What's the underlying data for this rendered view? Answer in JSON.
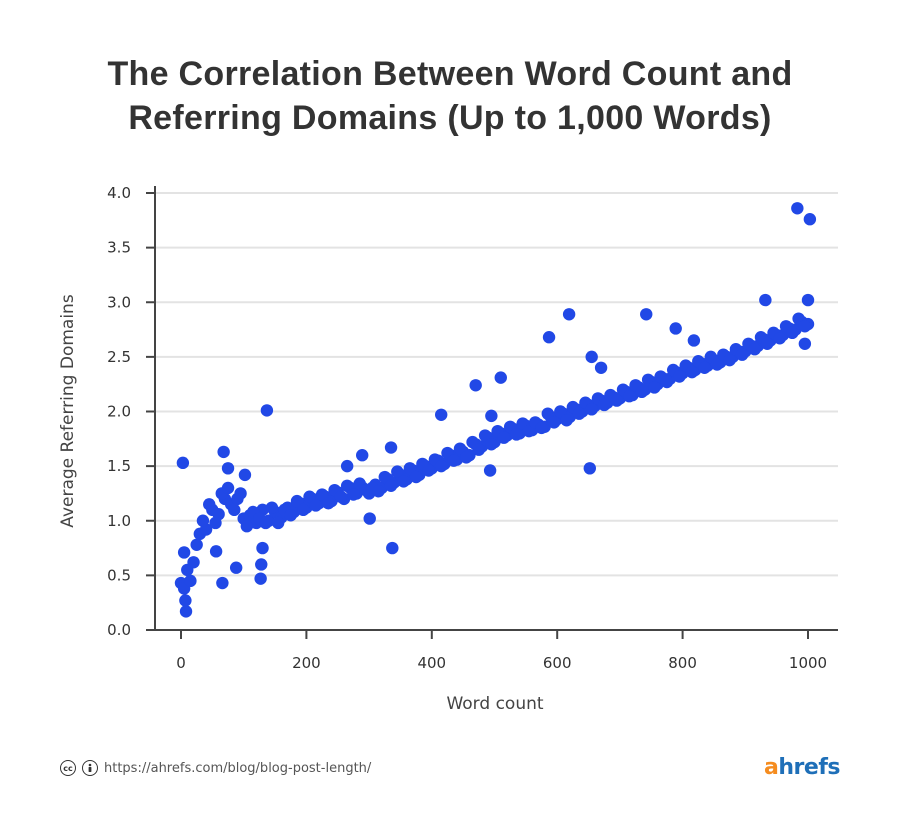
{
  "chart_data": {
    "type": "scatter",
    "title": "The Correlation Between Word Count and Referring Domains (Up to 1,000 Words)",
    "title_lines": [
      "The Correlation Between Word Count and",
      "Referring Domains (Up to 1,000 Words)"
    ],
    "xlabel": "Word count",
    "ylabel": "Average Referring Domains",
    "xlim": [
      0,
      1000
    ],
    "ylim": [
      0,
      4.0
    ],
    "xticks": [
      "0",
      "200",
      "400",
      "600",
      "800",
      "1000"
    ],
    "xtick_values": [
      0,
      200,
      400,
      600,
      800,
      1000
    ],
    "yticks": [
      "0.0",
      "0.5",
      "1.0",
      "1.5",
      "2.0",
      "2.5",
      "3.0",
      "3.5",
      "4.0"
    ],
    "ytick_values": [
      0,
      0.5,
      1,
      1.5,
      2,
      2.5,
      3,
      3.5,
      4
    ],
    "grid": "horizontal",
    "point_color": "#2148e6",
    "points": [
      [
        0,
        0.43
      ],
      [
        10,
        0.55
      ],
      [
        20,
        0.62
      ],
      [
        30,
        0.88
      ],
      [
        40,
        0.92
      ],
      [
        50,
        1.1
      ],
      [
        60,
        1.06
      ],
      [
        70,
        1.2
      ],
      [
        80,
        1.15
      ],
      [
        90,
        1.2
      ],
      [
        100,
        1.02
      ],
      [
        110,
        1.05
      ],
      [
        120,
        0.98
      ],
      [
        130,
        1.1
      ],
      [
        140,
        1.0
      ],
      [
        150,
        1.08
      ],
      [
        160,
        1.03
      ],
      [
        170,
        1.12
      ],
      [
        180,
        1.08
      ],
      [
        190,
        1.16
      ],
      [
        200,
        1.12
      ],
      [
        210,
        1.2
      ],
      [
        220,
        1.16
      ],
      [
        230,
        1.22
      ],
      [
        240,
        1.18
      ],
      [
        250,
        1.26
      ],
      [
        260,
        1.2
      ],
      [
        270,
        1.3
      ],
      [
        280,
        1.25
      ],
      [
        290,
        1.3
      ],
      [
        300,
        1.25
      ],
      [
        310,
        1.33
      ],
      [
        320,
        1.3
      ],
      [
        330,
        1.38
      ],
      [
        340,
        1.35
      ],
      [
        350,
        1.42
      ],
      [
        360,
        1.38
      ],
      [
        370,
        1.46
      ],
      [
        380,
        1.42
      ],
      [
        390,
        1.5
      ],
      [
        400,
        1.48
      ],
      [
        410,
        1.55
      ],
      [
        420,
        1.52
      ],
      [
        430,
        1.6
      ],
      [
        440,
        1.56
      ],
      [
        450,
        1.63
      ],
      [
        460,
        1.6
      ],
      [
        470,
        1.7
      ],
      [
        480,
        1.68
      ],
      [
        490,
        1.76
      ],
      [
        500,
        1.72
      ],
      [
        510,
        1.8
      ],
      [
        520,
        1.78
      ],
      [
        530,
        1.84
      ],
      [
        540,
        1.8
      ],
      [
        550,
        1.87
      ],
      [
        560,
        1.83
      ],
      [
        570,
        1.88
      ],
      [
        580,
        1.86
      ],
      [
        590,
        1.95
      ],
      [
        600,
        1.93
      ],
      [
        610,
        1.98
      ],
      [
        620,
        1.95
      ],
      [
        630,
        2.02
      ],
      [
        640,
        2.0
      ],
      [
        650,
        2.06
      ],
      [
        660,
        2.05
      ],
      [
        670,
        2.1
      ],
      [
        680,
        2.08
      ],
      [
        690,
        2.13
      ],
      [
        700,
        2.12
      ],
      [
        710,
        2.18
      ],
      [
        720,
        2.15
      ],
      [
        730,
        2.22
      ],
      [
        740,
        2.2
      ],
      [
        750,
        2.27
      ],
      [
        760,
        2.25
      ],
      [
        770,
        2.3
      ],
      [
        780,
        2.3
      ],
      [
        790,
        2.36
      ],
      [
        800,
        2.35
      ],
      [
        810,
        2.4
      ],
      [
        820,
        2.38
      ],
      [
        830,
        2.44
      ],
      [
        840,
        2.42
      ],
      [
        850,
        2.47
      ],
      [
        860,
        2.45
      ],
      [
        870,
        2.5
      ],
      [
        880,
        2.5
      ],
      [
        890,
        2.55
      ],
      [
        900,
        2.55
      ],
      [
        910,
        2.6
      ],
      [
        920,
        2.6
      ],
      [
        930,
        2.66
      ],
      [
        940,
        2.65
      ],
      [
        950,
        2.7
      ],
      [
        960,
        2.7
      ],
      [
        970,
        2.76
      ],
      [
        980,
        2.75
      ],
      [
        990,
        2.82
      ],
      [
        1000,
        2.8
      ],
      [
        5,
        0.38
      ],
      [
        15,
        0.45
      ],
      [
        25,
        0.78
      ],
      [
        35,
        1.0
      ],
      [
        45,
        1.15
      ],
      [
        55,
        0.98
      ],
      [
        65,
        1.25
      ],
      [
        75,
        1.3
      ],
      [
        85,
        1.1
      ],
      [
        95,
        1.25
      ],
      [
        105,
        0.95
      ],
      [
        115,
        1.08
      ],
      [
        125,
        1.02
      ],
      [
        135,
        0.98
      ],
      [
        145,
        1.12
      ],
      [
        155,
        0.98
      ],
      [
        165,
        1.1
      ],
      [
        175,
        1.05
      ],
      [
        185,
        1.18
      ],
      [
        195,
        1.1
      ],
      [
        205,
        1.22
      ],
      [
        215,
        1.14
      ],
      [
        225,
        1.24
      ],
      [
        235,
        1.16
      ],
      [
        245,
        1.28
      ],
      [
        255,
        1.22
      ],
      [
        265,
        1.32
      ],
      [
        275,
        1.24
      ],
      [
        285,
        1.34
      ],
      [
        295,
        1.28
      ],
      [
        305,
        1.3
      ],
      [
        315,
        1.27
      ],
      [
        325,
        1.4
      ],
      [
        335,
        1.32
      ],
      [
        345,
        1.45
      ],
      [
        355,
        1.36
      ],
      [
        365,
        1.48
      ],
      [
        375,
        1.4
      ],
      [
        385,
        1.52
      ],
      [
        395,
        1.46
      ],
      [
        405,
        1.56
      ],
      [
        415,
        1.5
      ],
      [
        425,
        1.62
      ],
      [
        435,
        1.55
      ],
      [
        445,
        1.66
      ],
      [
        455,
        1.58
      ],
      [
        465,
        1.72
      ],
      [
        475,
        1.65
      ],
      [
        485,
        1.78
      ],
      [
        495,
        1.7
      ],
      [
        505,
        1.82
      ],
      [
        515,
        1.76
      ],
      [
        525,
        1.86
      ],
      [
        535,
        1.79
      ],
      [
        545,
        1.89
      ],
      [
        555,
        1.82
      ],
      [
        565,
        1.9
      ],
      [
        575,
        1.85
      ],
      [
        585,
        1.98
      ],
      [
        595,
        1.9
      ],
      [
        605,
        2.0
      ],
      [
        615,
        1.92
      ],
      [
        625,
        2.04
      ],
      [
        635,
        1.98
      ],
      [
        645,
        2.08
      ],
      [
        655,
        2.02
      ],
      [
        665,
        2.12
      ],
      [
        675,
        2.06
      ],
      [
        685,
        2.15
      ],
      [
        695,
        2.1
      ],
      [
        705,
        2.2
      ],
      [
        715,
        2.14
      ],
      [
        725,
        2.24
      ],
      [
        735,
        2.18
      ],
      [
        745,
        2.29
      ],
      [
        755,
        2.22
      ],
      [
        765,
        2.32
      ],
      [
        775,
        2.27
      ],
      [
        785,
        2.38
      ],
      [
        795,
        2.32
      ],
      [
        805,
        2.42
      ],
      [
        815,
        2.36
      ],
      [
        825,
        2.46
      ],
      [
        835,
        2.4
      ],
      [
        845,
        2.5
      ],
      [
        855,
        2.43
      ],
      [
        865,
        2.52
      ],
      [
        875,
        2.47
      ],
      [
        885,
        2.57
      ],
      [
        895,
        2.52
      ],
      [
        905,
        2.62
      ],
      [
        915,
        2.57
      ],
      [
        925,
        2.68
      ],
      [
        935,
        2.62
      ],
      [
        945,
        2.72
      ],
      [
        955,
        2.67
      ],
      [
        965,
        2.78
      ],
      [
        975,
        2.72
      ],
      [
        985,
        2.85
      ],
      [
        995,
        2.78
      ],
      [
        3,
        1.53
      ],
      [
        5,
        0.71
      ],
      [
        8,
        0.17
      ],
      [
        7,
        0.27
      ],
      [
        68,
        1.63
      ],
      [
        66,
        0.43
      ],
      [
        88,
        0.57
      ],
      [
        102,
        1.42
      ],
      [
        137,
        2.01
      ],
      [
        127,
        0.47
      ],
      [
        128,
        0.6
      ],
      [
        130,
        0.75
      ],
      [
        56,
        0.72
      ],
      [
        75,
        1.48
      ],
      [
        289,
        1.6
      ],
      [
        301,
        1.02
      ],
      [
        337,
        0.75
      ],
      [
        335,
        1.67
      ],
      [
        265,
        1.5
      ],
      [
        415,
        1.97
      ],
      [
        470,
        2.24
      ],
      [
        493,
        1.46
      ],
      [
        495,
        1.96
      ],
      [
        510,
        2.31
      ],
      [
        587,
        2.68
      ],
      [
        619,
        2.89
      ],
      [
        652,
        1.48
      ],
      [
        655,
        2.5
      ],
      [
        670,
        2.4
      ],
      [
        742,
        2.89
      ],
      [
        789,
        2.76
      ],
      [
        818,
        2.65
      ],
      [
        932,
        3.02
      ],
      [
        1000,
        3.02
      ],
      [
        995,
        2.62
      ],
      [
        983,
        3.86
      ],
      [
        1003,
        3.76
      ]
    ]
  },
  "footer": {
    "license_icons": [
      "creative-commons-icon",
      "attribution-icon"
    ],
    "cc_glyph": "cc",
    "url": "https://ahrefs.com/blog/blog-post-length/",
    "logo": {
      "first": "a",
      "rest": "hrefs"
    }
  }
}
